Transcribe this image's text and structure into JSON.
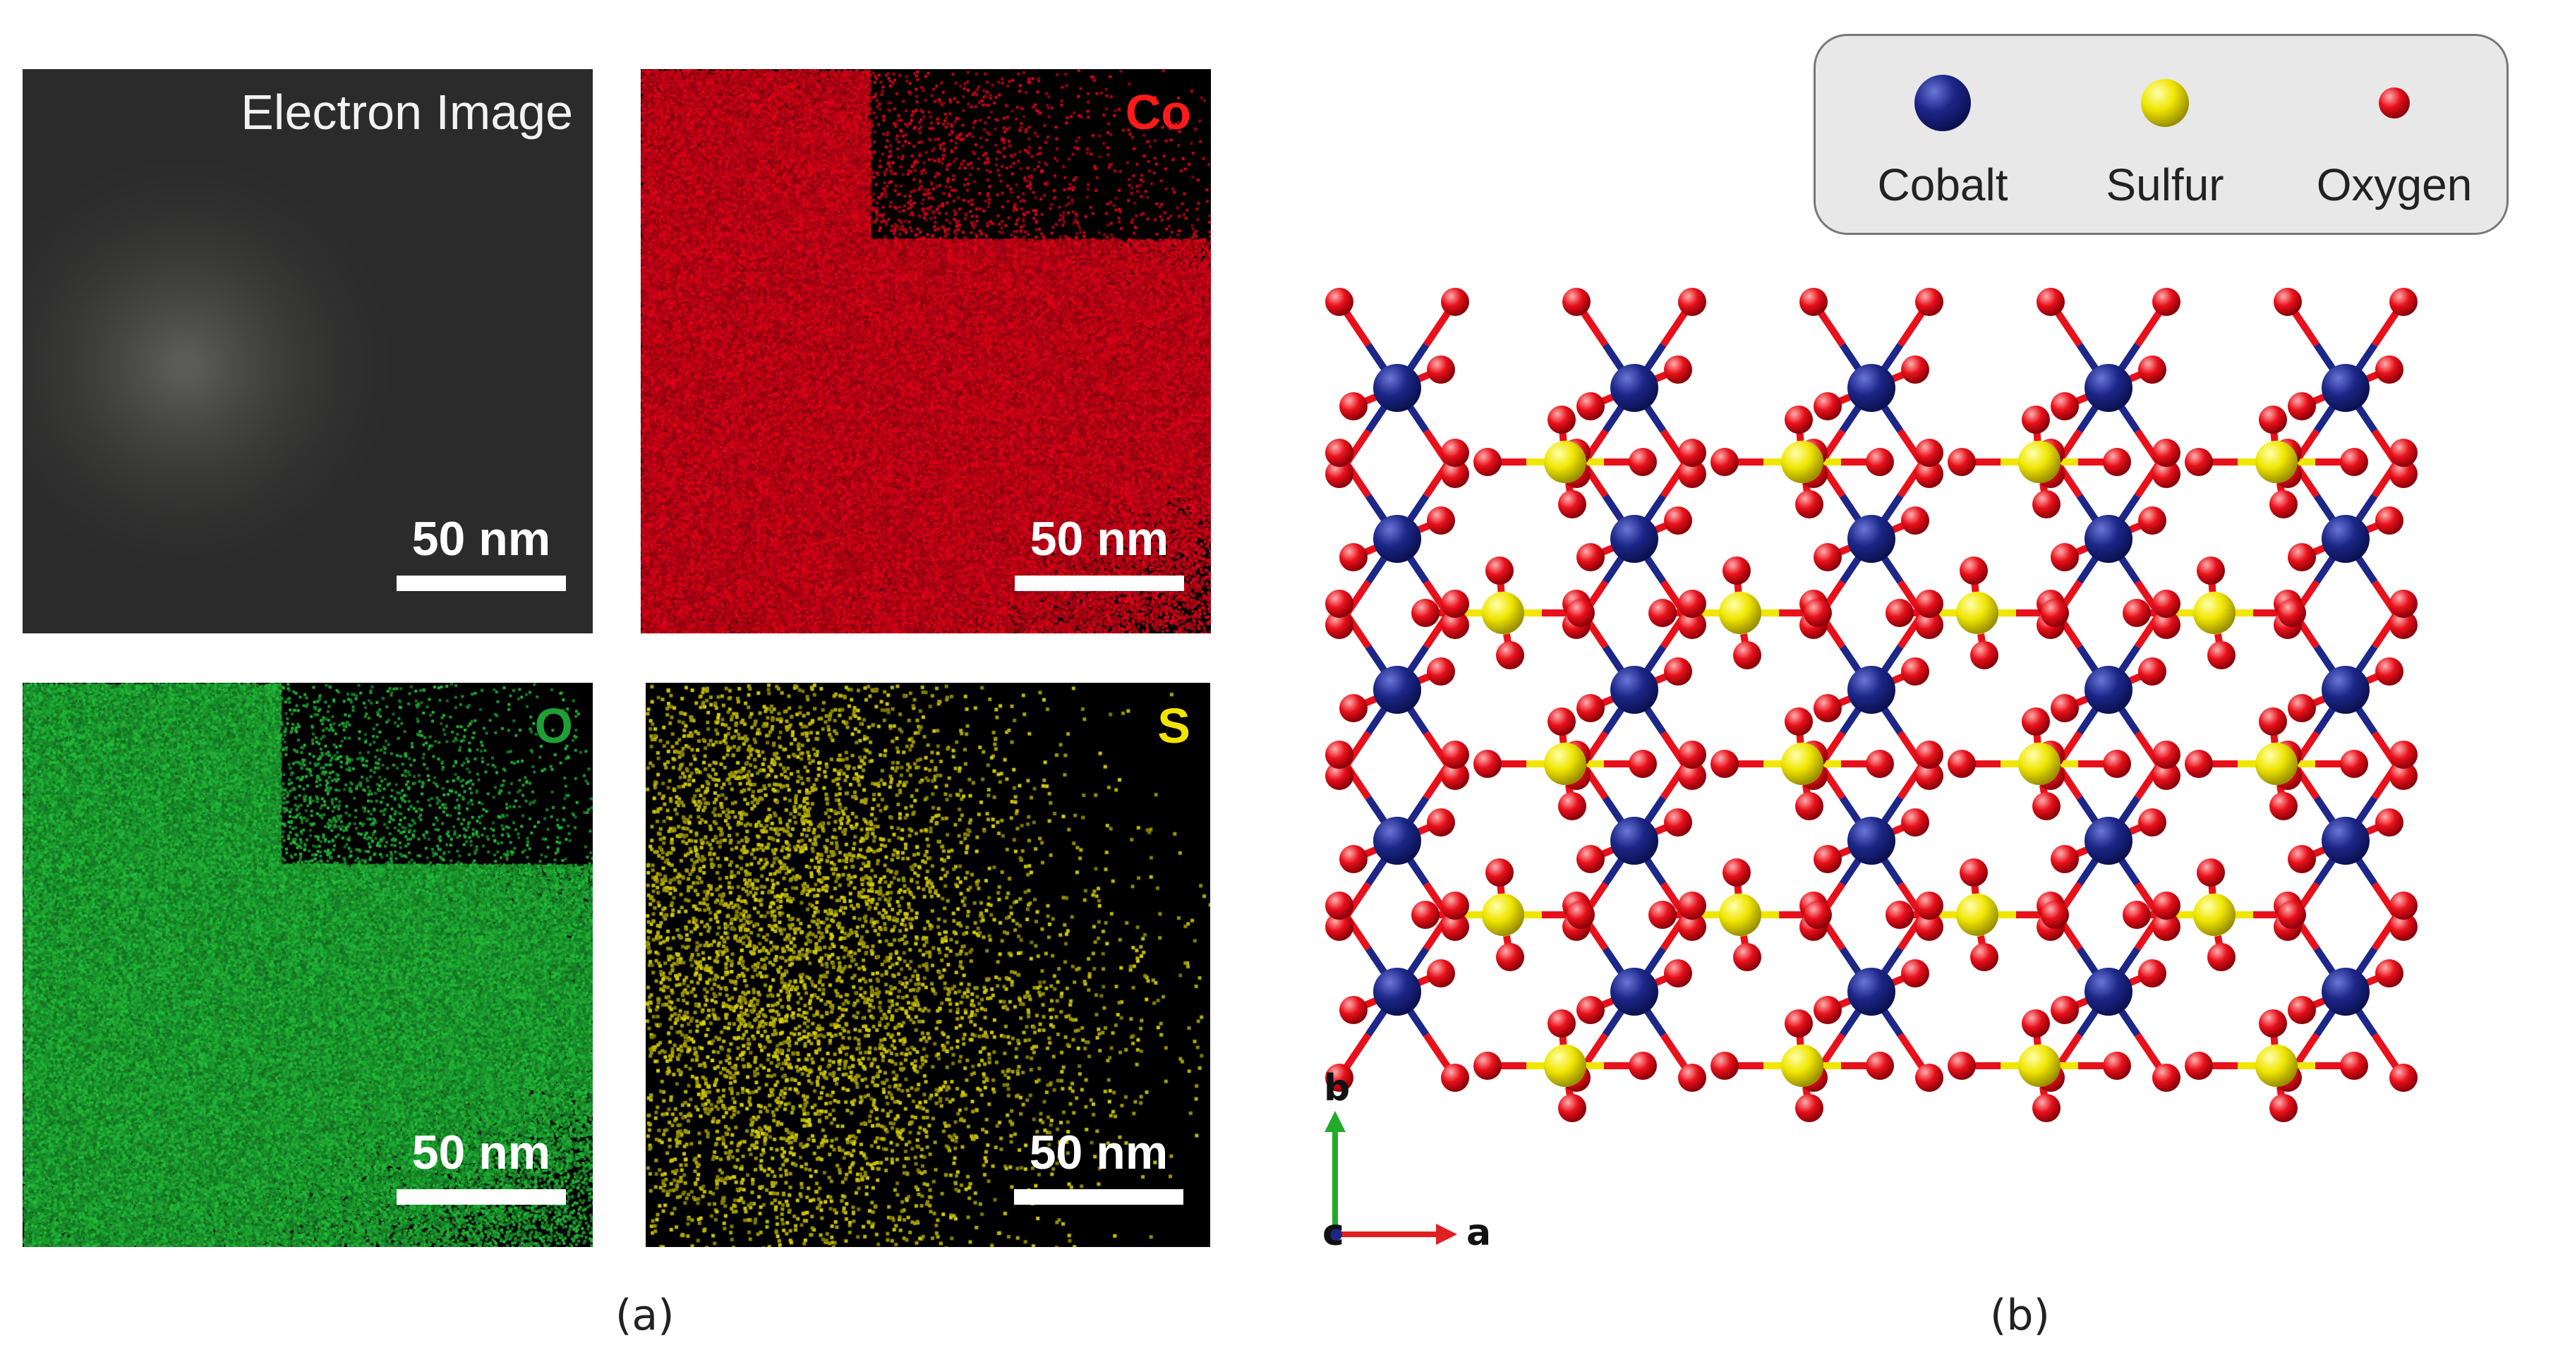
{
  "panel_a": {
    "electron_image": {
      "title": "Electron Image",
      "scale": "50 nm"
    },
    "co_map": {
      "title": "Co",
      "title_color": "#ff1a1a",
      "map_color": "#e8001a",
      "scale": "50 nm"
    },
    "o_map": {
      "title": "O",
      "title_color": "#1fa035",
      "map_color": "#22c03a",
      "scale": "50 nm"
    },
    "s_map": {
      "title": "S",
      "title_color": "#f3e400",
      "map_color": "#d8d000",
      "scale": "50 nm"
    },
    "caption": "(a)"
  },
  "panel_b": {
    "legend": [
      {
        "label": "Cobalt",
        "color": "#1c2788",
        "icon": "cobalt-atom-icon"
      },
      {
        "label": "Sulfur",
        "color": "#f0e600",
        "icon": "sulfur-atom-icon"
      },
      {
        "label": "Oxygen",
        "color": "#e8101a",
        "icon": "oxygen-atom-icon"
      }
    ],
    "axes": {
      "b": "b",
      "c": "c",
      "a": "a"
    },
    "caption": "(b)"
  }
}
